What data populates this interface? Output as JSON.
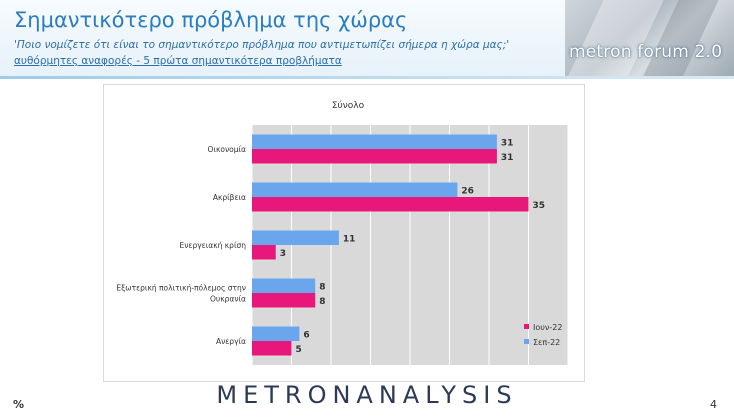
{
  "header": {
    "title": "Σημαντικότερο πρόβλημα της χώρας",
    "subtitle": "'Ποιο νομίζετε ότι  είναι το σημαντικότερο πρόβλημα που αντιμετωπίζει σήμερα η χώρα μας;'",
    "note": "αυθόρμητες αναφορές - 5 πρώτα σημαντικότερα προβλήματα",
    "logo_text": "metron forum 2.0"
  },
  "footer": {
    "brand": "METRONANALYSIS",
    "unit_label": "%",
    "page_number": "4"
  },
  "colors": {
    "jun22": "#e8177a",
    "sep22": "#6aa6ee",
    "plot_bg": "#d9d9d9",
    "title_blue": "#2a7dc2"
  },
  "chart_data": {
    "type": "bar",
    "orientation": "horizontal",
    "title": "Σύνολο",
    "categories": [
      "Οικονομία",
      "Ακρίβεια",
      "Ενεργειακή κρίση",
      "Εξωτερική πολιτική-πόλεμος στην Ουκρανία",
      "Ανεργία"
    ],
    "category_lines": [
      [
        "Οικονομία"
      ],
      [
        "Ακρίβεια"
      ],
      [
        "Ενεργειακή κρίση"
      ],
      [
        "Εξωτερική πολιτική-πόλεμος στην",
        "Ουκρανία"
      ],
      [
        "Ανεργία"
      ]
    ],
    "series": [
      {
        "name": "Σεπ-22",
        "values": [
          31,
          26,
          11,
          8,
          6
        ],
        "color": "#6aa6ee"
      },
      {
        "name": "Ιουν-22",
        "values": [
          31,
          35,
          3,
          8,
          5
        ],
        "color": "#e8177a"
      }
    ],
    "legend_order": [
      "Ιουν-22",
      "Σεπ-22"
    ],
    "xlim": [
      0,
      40
    ],
    "grid": true,
    "legend": "bottom-right",
    "data_labels": true
  }
}
